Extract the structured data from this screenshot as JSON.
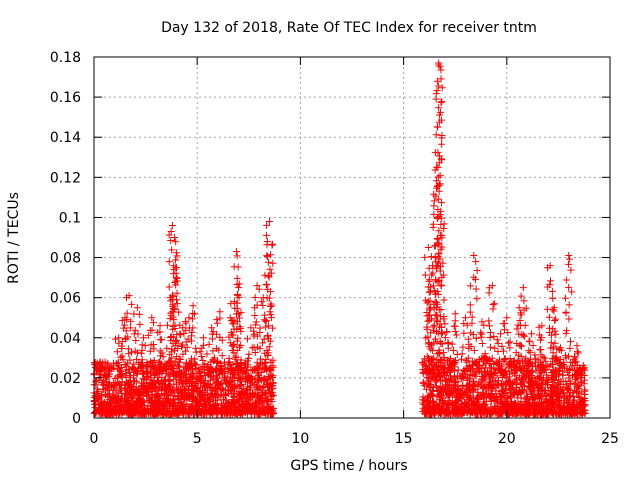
{
  "chart_data": {
    "type": "scatter",
    "title": "Day 132 of 2018, Rate Of TEC Index for receiver tntm",
    "xlabel": "GPS time / hours",
    "ylabel": "ROTI / TECUs",
    "xlim": [
      0,
      25
    ],
    "ylim": [
      0,
      0.18
    ],
    "grid": true,
    "marker": "+",
    "color": "#ff0000",
    "x_ticks": [
      "0",
      "5",
      "10",
      "15",
      "20",
      "25"
    ],
    "x_tick_values": [
      0,
      5,
      10,
      15,
      20,
      25
    ],
    "y_ticks": [
      "0",
      "0.02",
      "0.04",
      "0.06",
      "0.08",
      "0.1",
      "0.12",
      "0.14",
      "0.16",
      "0.18"
    ],
    "y_tick_values": [
      0,
      0.02,
      0.04,
      0.06,
      0.08,
      0.1,
      0.12,
      0.14,
      0.16,
      0.18
    ],
    "series": [
      {
        "name": "ROTI",
        "segments": [
          {
            "x_start": 0.0,
            "x_end": 8.7,
            "baseline": [
              0.002,
              0.028
            ]
          },
          {
            "x_start": 15.9,
            "x_end": 23.8,
            "baseline": [
              0.002,
              0.03
            ]
          }
        ],
        "peaks": [
          {
            "x": 0.3,
            "y": 0.028
          },
          {
            "x": 1.2,
            "y": 0.04
          },
          {
            "x": 1.5,
            "y": 0.05
          },
          {
            "x": 1.7,
            "y": 0.061
          },
          {
            "x": 2.1,
            "y": 0.055
          },
          {
            "x": 2.4,
            "y": 0.04
          },
          {
            "x": 2.8,
            "y": 0.05
          },
          {
            "x": 3.2,
            "y": 0.046
          },
          {
            "x": 3.7,
            "y": 0.06
          },
          {
            "x": 3.8,
            "y": 0.096
          },
          {
            "x": 3.9,
            "y": 0.09
          },
          {
            "x": 4.0,
            "y": 0.075
          },
          {
            "x": 4.3,
            "y": 0.045
          },
          {
            "x": 4.6,
            "y": 0.05
          },
          {
            "x": 4.8,
            "y": 0.056
          },
          {
            "x": 5.3,
            "y": 0.04
          },
          {
            "x": 5.7,
            "y": 0.045
          },
          {
            "x": 6.1,
            "y": 0.053
          },
          {
            "x": 6.6,
            "y": 0.05
          },
          {
            "x": 6.8,
            "y": 0.058
          },
          {
            "x": 6.9,
            "y": 0.083
          },
          {
            "x": 7.0,
            "y": 0.065
          },
          {
            "x": 7.6,
            "y": 0.045
          },
          {
            "x": 7.9,
            "y": 0.066
          },
          {
            "x": 8.2,
            "y": 0.06
          },
          {
            "x": 8.4,
            "y": 0.088
          },
          {
            "x": 8.5,
            "y": 0.098
          },
          {
            "x": 16.2,
            "y": 0.085
          },
          {
            "x": 16.3,
            "y": 0.063
          },
          {
            "x": 16.4,
            "y": 0.076
          },
          {
            "x": 16.6,
            "y": 0.125
          },
          {
            "x": 16.7,
            "y": 0.176
          },
          {
            "x": 16.7,
            "y": 0.177
          },
          {
            "x": 16.8,
            "y": 0.103
          },
          {
            "x": 17.0,
            "y": 0.047
          },
          {
            "x": 17.5,
            "y": 0.052
          },
          {
            "x": 18.0,
            "y": 0.05
          },
          {
            "x": 18.4,
            "y": 0.081
          },
          {
            "x": 18.8,
            "y": 0.048
          },
          {
            "x": 19.3,
            "y": 0.066
          },
          {
            "x": 19.7,
            "y": 0.042
          },
          {
            "x": 20.0,
            "y": 0.05
          },
          {
            "x": 20.6,
            "y": 0.055
          },
          {
            "x": 20.8,
            "y": 0.065
          },
          {
            "x": 21.2,
            "y": 0.042
          },
          {
            "x": 21.7,
            "y": 0.046
          },
          {
            "x": 22.1,
            "y": 0.076
          },
          {
            "x": 22.3,
            "y": 0.055
          },
          {
            "x": 22.6,
            "y": 0.035
          },
          {
            "x": 23.0,
            "y": 0.081
          },
          {
            "x": 23.4,
            "y": 0.036
          }
        ]
      }
    ]
  }
}
